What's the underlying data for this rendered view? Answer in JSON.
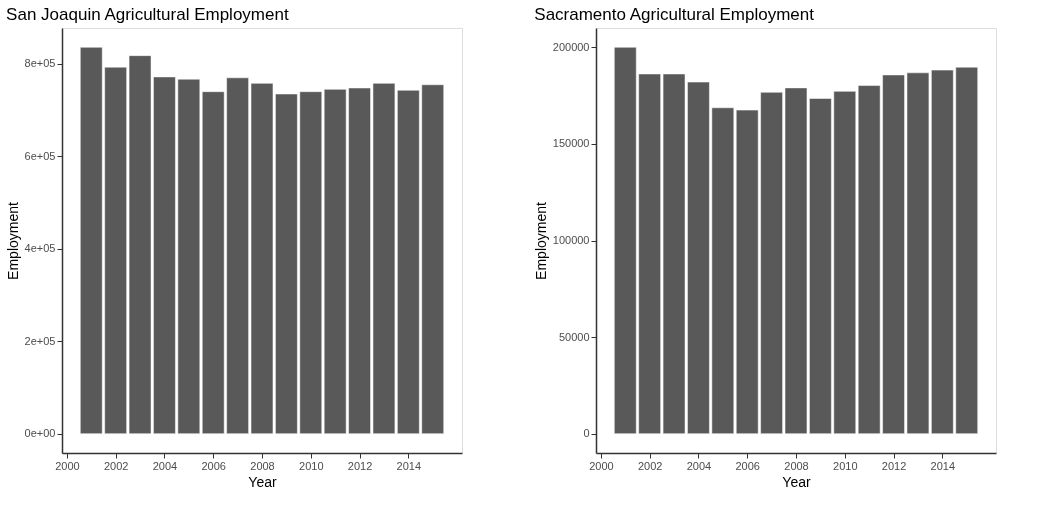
{
  "chart_data": [
    {
      "type": "bar",
      "title": "San Joaquin Agricultural Employment",
      "xlabel": "Year",
      "ylabel": "Employment",
      "grid": false,
      "x": [
        2001,
        2002,
        2003,
        2004,
        2005,
        2006,
        2007,
        2008,
        2009,
        2010,
        2011,
        2012,
        2013,
        2014,
        2015
      ],
      "values": [
        836000,
        793000,
        818000,
        772000,
        767000,
        740000,
        770000,
        758000,
        735000,
        740000,
        745000,
        748000,
        758000,
        743000,
        755000
      ],
      "color": "#595959",
      "xlim": [
        1999.8,
        2016.2
      ],
      "xticks": [
        2000,
        2002,
        2004,
        2006,
        2008,
        2010,
        2012,
        2014
      ],
      "ylim": [
        -41800,
        877800
      ],
      "yticks": [
        {
          "value": 0,
          "label": "0e+00"
        },
        {
          "value": 200000,
          "label": "2e+05"
        },
        {
          "value": 400000,
          "label": "4e+05"
        },
        {
          "value": 600000,
          "label": "6e+05"
        },
        {
          "value": 800000,
          "label": "8e+05"
        }
      ]
    },
    {
      "type": "bar",
      "title": "Sacramento Agricultural Employment",
      "xlabel": "Year",
      "ylabel": "Employment",
      "grid": false,
      "x": [
        2001,
        2002,
        2003,
        2004,
        2005,
        2006,
        2007,
        2008,
        2009,
        2010,
        2011,
        2012,
        2013,
        2014,
        2015
      ],
      "values": [
        200000,
        186200,
        186200,
        182000,
        168700,
        167500,
        176700,
        179000,
        173500,
        177200,
        180200,
        185700,
        186800,
        188200,
        189700
      ],
      "color": "#595959",
      "xlim": [
        1999.8,
        2016.2
      ],
      "xticks": [
        2000,
        2002,
        2004,
        2006,
        2008,
        2010,
        2012,
        2014
      ],
      "ylim": [
        -10000,
        210000
      ],
      "yticks": [
        0,
        50000,
        100000,
        150000,
        200000
      ]
    }
  ]
}
